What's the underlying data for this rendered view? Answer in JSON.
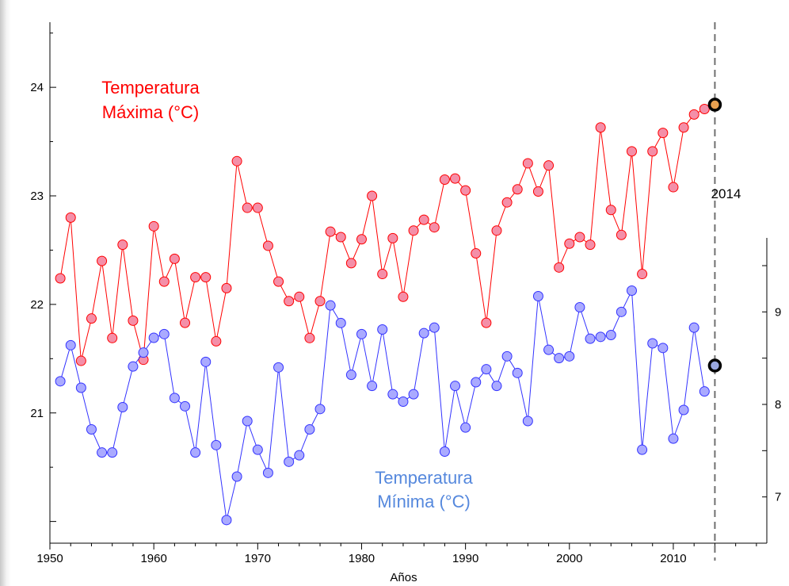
{
  "chart_data": {
    "type": "line",
    "xlabel": "Años",
    "xlim": [
      1950,
      2019
    ],
    "x_ticks": [
      1950,
      1960,
      1970,
      1980,
      1990,
      2000,
      2010
    ],
    "left_axis": {
      "ylim": [
        19.8,
        24.6
      ],
      "ticks": [
        21,
        22,
        23,
        24
      ]
    },
    "right_axis": {
      "ylim": [
        6.5,
        9.8
      ],
      "ticks": [
        7,
        8,
        9
      ]
    },
    "marker_year": {
      "x": 2014,
      "label": "2014"
    },
    "series": [
      {
        "name": "Temperatura Máxima (°C)",
        "label_lines": [
          "Temperatura",
          "Máxima (°C)"
        ],
        "axis": "left",
        "color": "#ff0000",
        "marker_fill": "#f48fa8",
        "x": [
          1951,
          1952,
          1953,
          1954,
          1955,
          1956,
          1957,
          1958,
          1959,
          1960,
          1961,
          1962,
          1963,
          1964,
          1965,
          1966,
          1967,
          1968,
          1969,
          1970,
          1971,
          1972,
          1973,
          1974,
          1975,
          1976,
          1977,
          1978,
          1979,
          1980,
          1981,
          1982,
          1983,
          1984,
          1985,
          1986,
          1987,
          1988,
          1989,
          1990,
          1991,
          1992,
          1993,
          1994,
          1995,
          1996,
          1997,
          1998,
          1999,
          2000,
          2001,
          2002,
          2003,
          2004,
          2005,
          2006,
          2007,
          2008,
          2009,
          2010,
          2011,
          2012,
          2013
        ],
        "values": [
          22.24,
          22.8,
          21.48,
          21.87,
          22.4,
          21.69,
          22.55,
          21.85,
          21.49,
          22.72,
          22.21,
          22.42,
          21.83,
          22.25,
          22.25,
          21.66,
          22.15,
          23.32,
          22.89,
          22.89,
          22.54,
          22.21,
          22.03,
          22.07,
          21.69,
          22.03,
          22.67,
          22.62,
          22.38,
          22.6,
          23.0,
          22.28,
          22.61,
          22.07,
          22.68,
          22.78,
          22.71,
          23.15,
          23.16,
          23.05,
          22.47,
          21.83,
          22.68,
          22.94,
          23.06,
          23.3,
          23.04,
          23.28,
          22.34,
          22.56,
          22.62,
          22.55,
          23.63,
          22.87,
          22.64,
          23.41,
          22.28,
          23.41,
          23.58,
          23.08,
          23.63,
          23.75,
          23.8
        ],
        "highlight": {
          "x": 2014,
          "value": 23.84
        }
      },
      {
        "name": "Temperatura Mínima (°C)",
        "label_lines": [
          "Temperatura",
          "Mínima (°C)"
        ],
        "axis": "right",
        "color": "#3333ff",
        "marker_fill": "#aaaaff",
        "x": [
          1951,
          1952,
          1953,
          1954,
          1955,
          1956,
          1957,
          1958,
          1959,
          1960,
          1961,
          1962,
          1963,
          1964,
          1965,
          1966,
          1967,
          1968,
          1969,
          1970,
          1971,
          1972,
          1973,
          1974,
          1975,
          1976,
          1977,
          1978,
          1979,
          1980,
          1981,
          1982,
          1983,
          1984,
          1985,
          1986,
          1987,
          1988,
          1989,
          1990,
          1991,
          1992,
          1993,
          1994,
          1995,
          1996,
          1997,
          1998,
          1999,
          2000,
          2001,
          2002,
          2003,
          2004,
          2005,
          2006,
          2007,
          2008,
          2009,
          2010,
          2011,
          2012,
          2013
        ],
        "values": [
          8.25,
          8.64,
          8.18,
          7.73,
          7.48,
          7.48,
          7.97,
          8.41,
          8.56,
          8.72,
          8.76,
          8.07,
          7.98,
          7.48,
          8.46,
          7.56,
          6.75,
          7.22,
          7.82,
          7.51,
          7.26,
          8.4,
          7.38,
          7.45,
          7.73,
          7.95,
          9.07,
          8.88,
          8.32,
          8.76,
          8.2,
          8.81,
          8.11,
          8.03,
          8.11,
          8.77,
          8.83,
          7.49,
          8.2,
          7.75,
          8.24,
          8.38,
          8.2,
          8.52,
          8.34,
          7.82,
          9.17,
          8.59,
          8.5,
          8.52,
          9.05,
          8.71,
          8.73,
          8.75,
          9.0,
          9.23,
          7.51,
          8.66,
          8.61,
          7.63,
          7.94,
          8.83,
          8.14
        ],
        "highlight": {
          "x": 2014,
          "value": 8.42
        }
      }
    ]
  }
}
